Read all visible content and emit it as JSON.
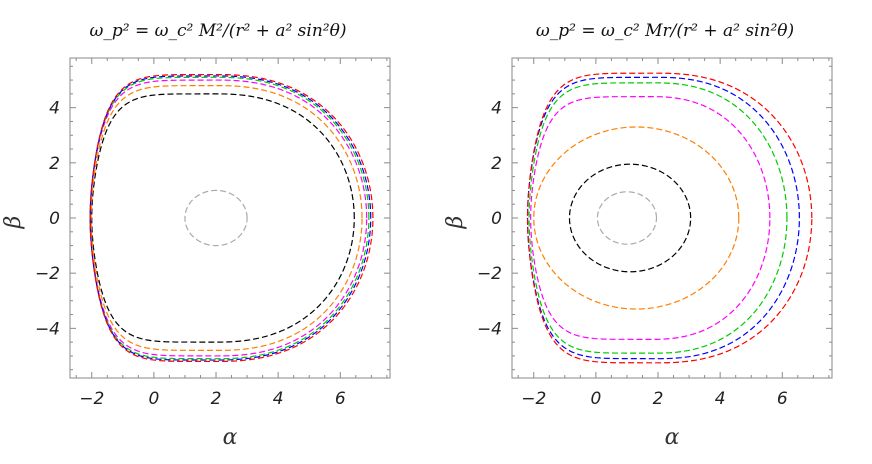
{
  "chart_data": [
    {
      "type": "line",
      "title": "ω_p² = ω_c² M²/(r² + a² sin²θ)",
      "xlabel": "α",
      "ylabel": "β",
      "xlim": [
        -2.7,
        7.6
      ],
      "ylim": [
        -5.8,
        5.8
      ],
      "xticks": [
        -2,
        0,
        2,
        4,
        6
      ],
      "yticks": [
        -4,
        -2,
        0,
        2,
        4
      ],
      "grid": false,
      "series": [
        {
          "color": "#aaaaaa",
          "shape": "circle",
          "center": [
            2.0,
            0.0
          ],
          "radius": 1.0
        },
        {
          "color": "#000000",
          "shape": "shadow",
          "left": -2.0,
          "right": 6.45,
          "top": 4.5,
          "bottom": -4.5,
          "peak_x": 2.0
        },
        {
          "color": "#ff7f00",
          "shape": "shadow",
          "left": -2.02,
          "right": 6.7,
          "top": 4.8,
          "bottom": -4.8,
          "peak_x": 2.05
        },
        {
          "color": "#ff00ff",
          "shape": "shadow",
          "left": -2.05,
          "right": 6.85,
          "top": 5.0,
          "bottom": -5.0,
          "peak_x": 2.05
        },
        {
          "color": "#00cc00",
          "shape": "shadow",
          "left": -2.05,
          "right": 6.92,
          "top": 5.1,
          "bottom": -5.1,
          "peak_x": 2.05
        },
        {
          "color": "#0000ff",
          "shape": "shadow",
          "left": -2.05,
          "right": 6.98,
          "top": 5.15,
          "bottom": -5.15,
          "peak_x": 2.05
        },
        {
          "color": "#ff0000",
          "shape": "shadow",
          "left": -2.05,
          "right": 7.05,
          "top": 5.2,
          "bottom": -5.2,
          "peak_x": 2.05
        }
      ]
    },
    {
      "type": "line",
      "title": "ω_p² = ω_c² Mr/(r² + a² sin²θ)",
      "xlabel": "α",
      "ylabel": "β",
      "xlim": [
        -2.7,
        7.6
      ],
      "ylim": [
        -5.8,
        5.8
      ],
      "xticks": [
        -2,
        0,
        2,
        4,
        6
      ],
      "yticks": [
        -4,
        -2,
        0,
        2,
        4
      ],
      "grid": false,
      "series": [
        {
          "color": "#aaaaaa",
          "shape": "circle",
          "center": [
            1.0,
            0.0
          ],
          "radius": 0.95
        },
        {
          "color": "#000000",
          "shape": "circle",
          "center": [
            1.1,
            0.0
          ],
          "radius": 1.95
        },
        {
          "color": "#ff7f00",
          "shape": "circle",
          "center": [
            1.3,
            0.0
          ],
          "radius": 3.3
        },
        {
          "color": "#ff00ff",
          "shape": "shadow",
          "left": -2.1,
          "right": 5.6,
          "top": 4.4,
          "bottom": -4.4,
          "peak_x": 1.8
        },
        {
          "color": "#00cc00",
          "shape": "shadow",
          "left": -2.15,
          "right": 6.15,
          "top": 4.9,
          "bottom": -4.9,
          "peak_x": 1.9
        },
        {
          "color": "#0000ff",
          "shape": "shadow",
          "left": -2.2,
          "right": 6.55,
          "top": 5.1,
          "bottom": -5.1,
          "peak_x": 2.0
        },
        {
          "color": "#ff0000",
          "shape": "shadow",
          "left": -2.2,
          "right": 6.95,
          "top": 5.25,
          "bottom": -5.25,
          "peak_x": 2.0
        }
      ]
    }
  ]
}
